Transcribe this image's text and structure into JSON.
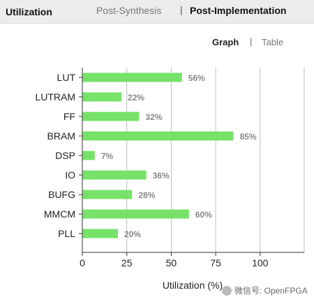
{
  "header": {
    "title": "Utilization",
    "tabs": [
      {
        "label": "Post-Synthesis",
        "active": false
      },
      {
        "label": "Post-Implementation",
        "active": true
      }
    ],
    "separator": "|"
  },
  "view_toggle": {
    "graph_label": "Graph",
    "separator": "|",
    "table_label": "Table",
    "active": "Graph"
  },
  "watermark": {
    "text": "微信号: OpenFPGA"
  },
  "chart_data": {
    "type": "bar",
    "orientation": "horizontal",
    "categories": [
      "LUT",
      "LUTRAM",
      "FF",
      "BRAM",
      "DSP",
      "IO",
      "BUFG",
      "MMCM",
      "PLL"
    ],
    "values": [
      56,
      22,
      32,
      85,
      7,
      36,
      28,
      60,
      20
    ],
    "value_labels": [
      "56%",
      "22%",
      "32%",
      "85%",
      "7%",
      "36%",
      "28%",
      "60%",
      "20%"
    ],
    "xlabel": "Utilization (%)",
    "xlim": [
      0,
      125
    ],
    "xticks": [
      0,
      25,
      50,
      75,
      100
    ],
    "grid": true,
    "bar_color": "#77e26a",
    "label_color": "#888888"
  }
}
